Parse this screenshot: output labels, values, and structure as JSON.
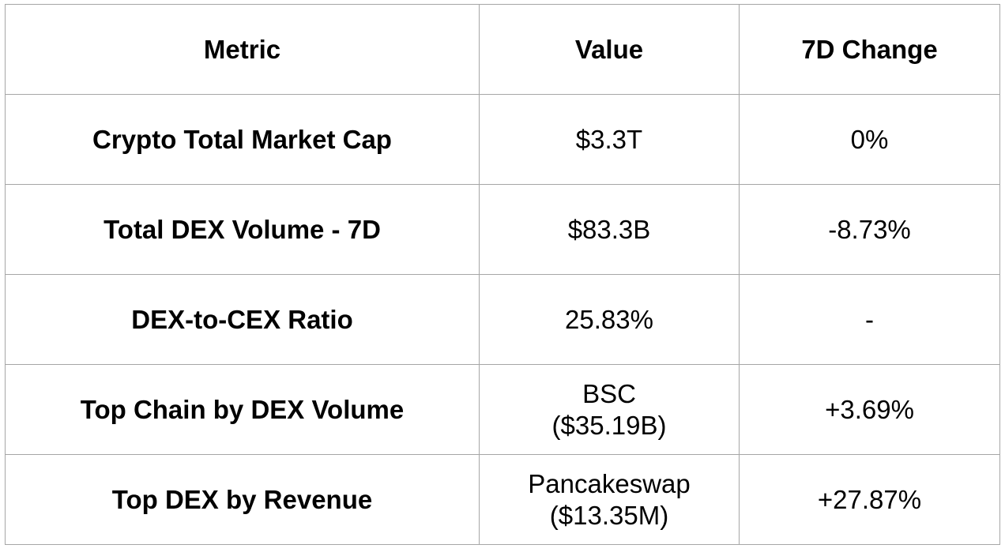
{
  "table": {
    "headers": [
      "Metric",
      "Value",
      "7D Change"
    ],
    "rows": [
      {
        "metric": "Crypto Total Market Cap",
        "value": [
          "$3.3T"
        ],
        "change": "0%"
      },
      {
        "metric": "Total DEX Volume - 7D",
        "value": [
          "$83.3B"
        ],
        "change": "-8.73%"
      },
      {
        "metric": "DEX-to-CEX Ratio",
        "value": [
          "25.83%"
        ],
        "change": "-"
      },
      {
        "metric": "Top Chain by DEX Volume",
        "value": [
          "BSC",
          "($35.19B)"
        ],
        "change": "+3.69%"
      },
      {
        "metric": "Top DEX by Revenue",
        "value": [
          "Pancakeswap",
          "($13.35M)"
        ],
        "change": "+27.87%"
      }
    ]
  }
}
